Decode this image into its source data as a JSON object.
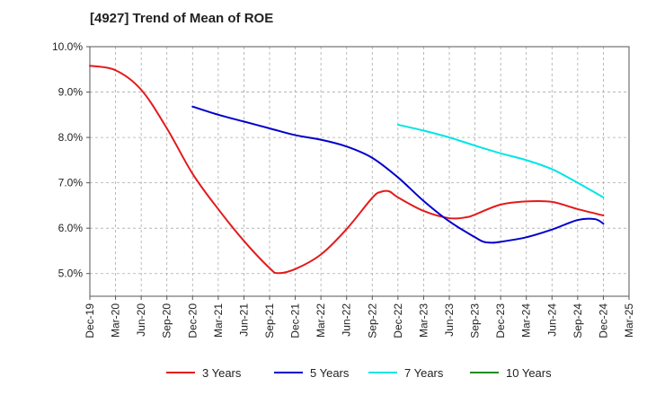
{
  "chart_data": {
    "type": "line",
    "title": "[4927]  Trend of Mean of ROE",
    "xlabel": "",
    "ylabel": "",
    "ylim": [
      4.5,
      10.0
    ],
    "yticks": [
      "10.0%",
      "9.0%",
      "8.0%",
      "7.0%",
      "6.0%",
      "5.0%"
    ],
    "ytick_values": [
      10.0,
      9.0,
      8.0,
      7.0,
      6.0,
      5.0
    ],
    "x_categories": [
      "Dec-19",
      "Mar-20",
      "Jun-20",
      "Sep-20",
      "Dec-20",
      "Mar-21",
      "Jun-21",
      "Sep-21",
      "Dec-21",
      "Mar-22",
      "Jun-22",
      "Sep-22",
      "Dec-22",
      "Mar-23",
      "Jun-23",
      "Sep-23",
      "Dec-23",
      "Mar-24",
      "Jun-24",
      "Sep-24",
      "Dec-24",
      "Mar-25"
    ],
    "grid": true,
    "legend_position": "bottom",
    "series": [
      {
        "name": "3 Years",
        "color": "#e31a1c",
        "points": [
          [
            "Dec-19",
            9.58
          ],
          [
            "Mar-20",
            9.48
          ],
          [
            "Jun-20",
            9.05
          ],
          [
            "Sep-20",
            8.2
          ],
          [
            "Dec-20",
            7.2
          ],
          [
            "Mar-21",
            6.42
          ],
          [
            "Jun-21",
            5.72
          ],
          [
            "Sep-21",
            5.12
          ],
          [
            "Oct-21",
            5.01
          ],
          [
            "Dec-21",
            5.1
          ],
          [
            "Mar-22",
            5.42
          ],
          [
            "Jun-22",
            5.98
          ],
          [
            "Sep-22",
            6.67
          ],
          [
            "Oct-22",
            6.8
          ],
          [
            "Nov-22",
            6.81
          ],
          [
            "Dec-22",
            6.68
          ],
          [
            "Mar-23",
            6.38
          ],
          [
            "Jun-23",
            6.22
          ],
          [
            "Aug-23",
            6.24
          ],
          [
            "Sep-23",
            6.3
          ],
          [
            "Dec-23",
            6.52
          ],
          [
            "Mar-24",
            6.59
          ],
          [
            "Jun-24",
            6.58
          ],
          [
            "Sep-24",
            6.42
          ],
          [
            "Dec-24",
            6.28
          ]
        ]
      },
      {
        "name": "5 Years",
        "color": "#0000cc",
        "points": [
          [
            "Dec-20",
            8.68
          ],
          [
            "Mar-21",
            8.5
          ],
          [
            "Jun-21",
            8.35
          ],
          [
            "Sep-21",
            8.2
          ],
          [
            "Dec-21",
            8.05
          ],
          [
            "Mar-22",
            7.95
          ],
          [
            "Jun-22",
            7.8
          ],
          [
            "Sep-22",
            7.55
          ],
          [
            "Dec-22",
            7.12
          ],
          [
            "Mar-23",
            6.6
          ],
          [
            "Jun-23",
            6.15
          ],
          [
            "Sep-23",
            5.8
          ],
          [
            "Oct-23",
            5.7
          ],
          [
            "Nov-23",
            5.68
          ],
          [
            "Dec-23",
            5.7
          ],
          [
            "Mar-24",
            5.8
          ],
          [
            "Jun-24",
            5.97
          ],
          [
            "Sep-24",
            6.18
          ],
          [
            "Nov-24",
            6.2
          ],
          [
            "Dec-24",
            6.1
          ]
        ]
      },
      {
        "name": "7 Years",
        "color": "#00e5e5",
        "points": [
          [
            "Dec-22",
            8.28
          ],
          [
            "Mar-23",
            8.15
          ],
          [
            "Jun-23",
            8.0
          ],
          [
            "Sep-23",
            7.82
          ],
          [
            "Dec-23",
            7.65
          ],
          [
            "Mar-24",
            7.5
          ],
          [
            "Jun-24",
            7.3
          ],
          [
            "Sep-24",
            7.0
          ],
          [
            "Dec-24",
            6.68
          ]
        ]
      },
      {
        "name": "10 Years",
        "color": "#228b22",
        "points": []
      }
    ]
  }
}
